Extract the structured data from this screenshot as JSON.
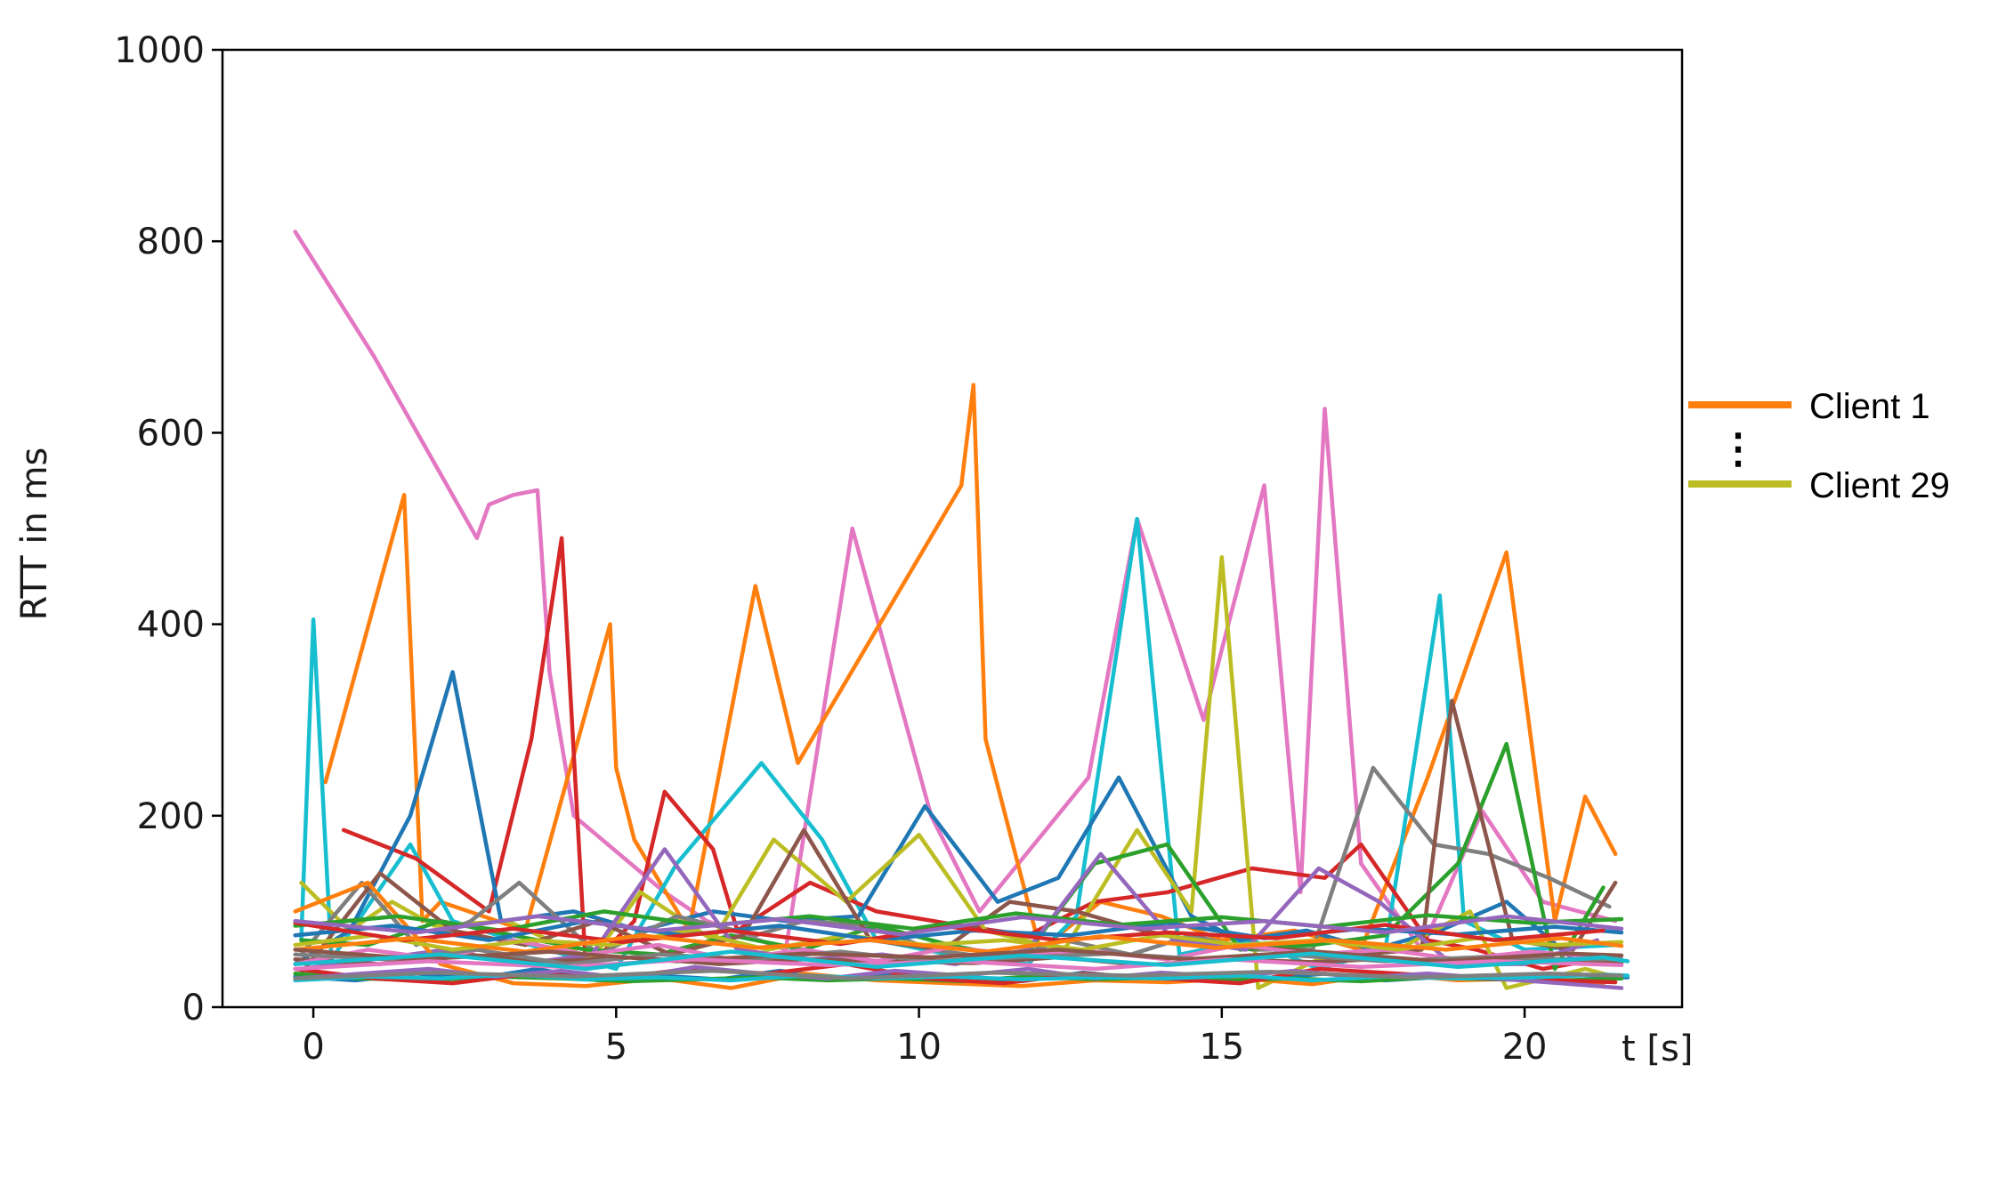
{
  "chart_data": {
    "type": "line",
    "xlabel": "t [s]",
    "ylabel": "RTT in ms",
    "xlim": [
      -1.5,
      22.6
    ],
    "ylim": [
      0,
      1000
    ],
    "xticks": [
      0,
      5,
      10,
      15,
      20
    ],
    "yticks": [
      0,
      200,
      400,
      600,
      800,
      1000
    ],
    "grid": false,
    "legend": {
      "placement": "right-outside",
      "entries": [
        {
          "label": "Client 1",
          "color": "#ff7f0e"
        },
        {
          "label": "Client 29",
          "color": "#bcbd22"
        }
      ],
      "ellipsis": "⋮"
    },
    "series": [
      {
        "color": "#e377c2",
        "x": [
          -0.3,
          1.0,
          2.7,
          2.9,
          3.3,
          3.7,
          3.9,
          4.3,
          5.8,
          6.5,
          7.8,
          8.9,
          10.2,
          11.0,
          12.8,
          13.6,
          14.7,
          15.7,
          16.3,
          16.7,
          17.3,
          18.3,
          19.3,
          20.3,
          21.5
        ],
        "y": [
          810,
          680,
          490,
          525,
          535,
          540,
          350,
          200,
          120,
          90,
          60,
          500,
          200,
          100,
          240,
          510,
          300,
          545,
          120,
          625,
          150,
          60,
          205,
          110,
          90
        ]
      },
      {
        "color": "#ff7f0e",
        "x": [
          0.2,
          1.5,
          1.8,
          2.1,
          3.5,
          4.9,
          5.0,
          5.3,
          6.2,
          7.3,
          8.0,
          10.7,
          10.9,
          11.1,
          12.0,
          13.0,
          14.0,
          15.0,
          16.2,
          17.3,
          18.4,
          19.7,
          20.5,
          21.0,
          21.5
        ],
        "y": [
          235,
          535,
          90,
          110,
          80,
          400,
          250,
          175,
          80,
          440,
          255,
          545,
          650,
          280,
          60,
          110,
          95,
          70,
          80,
          60,
          240,
          475,
          90,
          220,
          160
        ]
      },
      {
        "color": "#17becf",
        "x": [
          -0.2,
          0.0,
          0.3,
          1.6,
          2.3,
          3.3,
          5.0,
          6.0,
          7.4,
          8.4,
          9.3,
          10.5,
          11.8,
          12.6,
          13.6,
          14.3,
          15.5,
          16.6,
          17.7,
          18.6,
          19.0,
          20.0,
          21.5
        ],
        "y": [
          70,
          405,
          50,
          170,
          90,
          70,
          40,
          150,
          255,
          175,
          70,
          55,
          45,
          95,
          510,
          55,
          70,
          40,
          60,
          430,
          90,
          60,
          65
        ]
      },
      {
        "color": "#d62728",
        "x": [
          0.5,
          1.7,
          2.9,
          3.6,
          4.1,
          4.5,
          5.3,
          5.8,
          6.6,
          7.0,
          8.2,
          9.3,
          10.7,
          11.8,
          12.9,
          14.1,
          15.5,
          16.7,
          17.3,
          18.4,
          19.2,
          20.3,
          21.2
        ],
        "y": [
          185,
          155,
          100,
          280,
          490,
          40,
          90,
          225,
          165,
          80,
          130,
          100,
          85,
          75,
          110,
          120,
          145,
          135,
          170,
          70,
          60,
          40,
          50
        ]
      },
      {
        "color": "#1f77b4",
        "x": [
          -0.3,
          0.6,
          1.6,
          2.3,
          3.1,
          4.3,
          5.4,
          6.6,
          7.8,
          9.0,
          10.1,
          11.3,
          12.3,
          13.3,
          14.5,
          15.3,
          16.4,
          17.5,
          18.6,
          19.7,
          20.8
        ],
        "y": [
          45,
          80,
          200,
          350,
          90,
          100,
          80,
          100,
          90,
          95,
          210,
          110,
          135,
          240,
          95,
          70,
          80,
          60,
          80,
          110,
          50
        ]
      },
      {
        "color": "#bcbd22",
        "x": [
          -0.2,
          0.6,
          1.3,
          2.0,
          3.2,
          4.6,
          5.4,
          6.6,
          7.6,
          8.8,
          10.0,
          11.1,
          12.4,
          13.6,
          14.5,
          15.0,
          15.6,
          16.6,
          17.9,
          19.1,
          19.7,
          21.0,
          21.6
        ],
        "y": [
          130,
          80,
          110,
          85,
          90,
          50,
          120,
          70,
          175,
          110,
          180,
          80,
          60,
          185,
          100,
          470,
          20,
          50,
          60,
          100,
          20,
          40,
          30
        ]
      },
      {
        "color": "#7f7f7f",
        "x": [
          -0.2,
          0.8,
          1.7,
          2.6,
          3.4,
          4.7,
          6.0,
          7.3,
          8.1,
          9.2,
          10.2,
          11.4,
          12.4,
          13.5,
          14.5,
          15.5,
          16.5,
          17.5,
          18.5,
          19.4,
          20.4,
          21.4
        ],
        "y": [
          55,
          130,
          65,
          90,
          130,
          55,
          95,
          75,
          90,
          85,
          60,
          50,
          70,
          55,
          75,
          60,
          60,
          250,
          170,
          160,
          135,
          105
        ]
      },
      {
        "color": "#2ca02c",
        "x": [
          -0.2,
          0.9,
          2.1,
          3.3,
          4.5,
          5.7,
          6.9,
          8.1,
          9.3,
          10.5,
          11.7,
          12.9,
          14.1,
          15.3,
          16.5,
          17.7,
          18.9,
          19.7,
          20.5,
          21.3
        ],
        "y": [
          70,
          65,
          90,
          75,
          60,
          55,
          75,
          60,
          85,
          65,
          50,
          150,
          170,
          60,
          65,
          75,
          150,
          275,
          40,
          125
        ]
      },
      {
        "color": "#8c564b",
        "x": [
          -0.2,
          1.1,
          2.3,
          3.5,
          4.7,
          5.9,
          7.1,
          8.1,
          9.2,
          10.4,
          11.5,
          12.6,
          13.7,
          14.9,
          16.1,
          17.2,
          18.3,
          18.8,
          19.8,
          20.8,
          21.5
        ],
        "y": [
          35,
          140,
          80,
          65,
          90,
          55,
          75,
          185,
          70,
          60,
          110,
          100,
          80,
          65,
          60,
          55,
          60,
          320,
          70,
          60,
          130
        ]
      },
      {
        "color": "#9467bd",
        "x": [
          -0.2,
          1.0,
          2.2,
          3.4,
          4.6,
          5.8,
          7.0,
          8.2,
          9.4,
          10.6,
          11.8,
          13.0,
          14.2,
          15.4,
          16.6,
          17.6,
          18.8,
          20.0,
          21.2
        ],
        "y": [
          40,
          50,
          60,
          45,
          55,
          165,
          60,
          50,
          55,
          45,
          60,
          160,
          70,
          60,
          145,
          110,
          45,
          45,
          70
        ]
      },
      {
        "color": "#1f77b4",
        "x": [
          -0.3,
          0.7,
          1.7,
          2.7,
          3.7,
          4.7,
          5.7,
          6.7,
          7.7,
          8.7,
          9.7,
          10.7,
          11.7,
          12.7,
          13.7,
          14.7,
          15.7,
          16.7,
          17.7,
          18.7,
          19.7,
          20.7,
          21.7
        ],
        "y": [
          32,
          28,
          35,
          30,
          40,
          28,
          33,
          29,
          38,
          30,
          34,
          31,
          27,
          36,
          30,
          33,
          29,
          35,
          28,
          32,
          30,
          34,
          31
        ]
      },
      {
        "color": "#ff7f0e",
        "x": [
          -0.3,
          0.9,
          2.1,
          3.3,
          4.5,
          5.7,
          6.9,
          8.1,
          9.3,
          10.5,
          11.7,
          12.9,
          14.1,
          15.3,
          16.5,
          17.7,
          18.9,
          20.1,
          21.3
        ],
        "y": [
          100,
          130,
          45,
          25,
          22,
          30,
          20,
          35,
          28,
          25,
          22,
          28,
          26,
          30,
          24,
          35,
          28,
          30,
          25
        ]
      },
      {
        "color": "#2ca02c",
        "x": [
          -0.3,
          0.8,
          1.9,
          3.0,
          4.1,
          5.2,
          6.3,
          7.4,
          8.5,
          9.6,
          10.7,
          11.8,
          12.9,
          14.0,
          15.1,
          16.2,
          17.3,
          18.4,
          19.5,
          20.6,
          21.6
        ],
        "y": [
          35,
          30,
          28,
          32,
          30,
          27,
          29,
          31,
          28,
          30,
          27,
          32,
          29,
          31,
          28,
          30,
          27,
          31,
          29,
          28,
          30
        ]
      },
      {
        "color": "#d62728",
        "x": [
          -0.3,
          1.0,
          2.3,
          3.6,
          4.9,
          6.2,
          7.5,
          8.8,
          10.1,
          11.4,
          12.7,
          14.0,
          15.3,
          16.6,
          17.9,
          19.2,
          20.5,
          21.5
        ],
        "y": [
          40,
          30,
          25,
          35,
          30,
          40,
          35,
          45,
          30,
          25,
          35,
          30,
          25,
          40,
          35,
          30,
          28,
          26
        ]
      },
      {
        "color": "#9467bd",
        "x": [
          -0.3,
          0.8,
          1.9,
          3.0,
          4.1,
          5.2,
          6.3,
          7.4,
          8.5,
          9.6,
          10.7,
          11.8,
          12.9,
          14.0,
          15.1,
          16.2,
          17.3,
          18.4,
          19.5,
          20.6,
          21.6
        ],
        "y": [
          30,
          35,
          40,
          32,
          38,
          30,
          42,
          35,
          30,
          38,
          33,
          40,
          30,
          36,
          32,
          38,
          31,
          35,
          30,
          25,
          20
        ]
      },
      {
        "color": "#8c564b",
        "x": [
          -0.3,
          1.1,
          2.5,
          3.9,
          5.3,
          6.7,
          8.1,
          9.5,
          10.9,
          12.3,
          13.7,
          15.1,
          16.5,
          17.9,
          19.3,
          20.7,
          21.6
        ],
        "y": [
          50,
          45,
          55,
          48,
          52,
          45,
          50,
          48,
          46,
          52,
          44,
          50,
          47,
          51,
          45,
          48,
          46
        ]
      },
      {
        "color": "#e377c2",
        "x": [
          -0.3,
          0.9,
          2.1,
          3.3,
          4.5,
          5.7,
          6.9,
          8.1,
          9.3,
          10.5,
          11.7,
          12.9,
          14.1,
          15.3,
          16.5,
          17.7,
          18.9,
          20.1,
          21.3
        ],
        "y": [
          45,
          60,
          50,
          70,
          55,
          65,
          50,
          60,
          48,
          62,
          55,
          58,
          50,
          65,
          55,
          60,
          50,
          58,
          52
        ]
      },
      {
        "color": "#7f7f7f",
        "x": [
          -0.3,
          1.2,
          2.7,
          4.2,
          5.7,
          7.2,
          8.7,
          10.2,
          11.7,
          13.2,
          14.7,
          16.2,
          17.7,
          19.2,
          20.7,
          21.6
        ],
        "y": [
          55,
          50,
          60,
          45,
          55,
          50,
          58,
          48,
          52,
          56,
          50,
          54,
          48,
          52,
          50,
          50
        ]
      },
      {
        "color": "#bcbd22",
        "x": [
          -0.3,
          1.0,
          2.3,
          3.6,
          4.9,
          6.2,
          7.5,
          8.8,
          10.1,
          11.4,
          12.7,
          14.0,
          15.3,
          16.6,
          17.9,
          19.2,
          20.5,
          21.6
        ],
        "y": [
          65,
          75,
          60,
          70,
          65,
          80,
          60,
          75,
          65,
          70,
          60,
          75,
          65,
          70,
          60,
          72,
          65,
          68
        ]
      },
      {
        "color": "#17becf",
        "x": [
          -0.3,
          0.9,
          2.1,
          3.3,
          4.5,
          5.7,
          6.9,
          8.1,
          9.3,
          10.5,
          11.7,
          12.9,
          14.1,
          15.3,
          16.5,
          17.7,
          18.9,
          20.1,
          21.3,
          21.7
        ],
        "y": [
          28,
          32,
          30,
          34,
          29,
          31,
          28,
          33,
          30,
          32,
          29,
          31,
          30,
          33,
          28,
          32,
          30,
          31,
          34,
          33
        ]
      },
      {
        "color": "#1f77b4",
        "x": [
          -0.3,
          1.3,
          2.9,
          4.5,
          6.1,
          7.7,
          9.3,
          10.9,
          12.5,
          14.1,
          15.7,
          17.3,
          18.9,
          20.5,
          21.6
        ],
        "y": [
          75,
          85,
          70,
          90,
          75,
          85,
          70,
          80,
          75,
          88,
          72,
          82,
          76,
          84,
          78
        ]
      },
      {
        "color": "#2ca02c",
        "x": [
          -0.3,
          1.4,
          3.1,
          4.8,
          6.5,
          8.2,
          9.9,
          11.6,
          13.3,
          15.0,
          16.7,
          18.4,
          20.1,
          21.6
        ],
        "y": [
          85,
          95,
          80,
          100,
          85,
          95,
          82,
          98,
          86,
          94,
          84,
          96,
          88,
          92
        ]
      },
      {
        "color": "#d62728",
        "x": [
          -0.3,
          1.5,
          3.3,
          5.1,
          6.9,
          8.7,
          10.5,
          12.3,
          14.1,
          15.9,
          17.7,
          19.5,
          21.3
        ],
        "y": [
          88,
          70,
          82,
          68,
          80,
          66,
          84,
          70,
          78,
          72,
          86,
          70,
          80
        ]
      },
      {
        "color": "#ff7f0e",
        "x": [
          -0.3,
          1.6,
          3.5,
          5.4,
          7.3,
          9.2,
          11.1,
          13.0,
          14.9,
          16.8,
          18.7,
          20.6,
          21.6
        ],
        "y": [
          60,
          72,
          58,
          75,
          62,
          70,
          58,
          74,
          62,
          70,
          60,
          72,
          64
        ]
      },
      {
        "color": "#9467bd",
        "x": [
          -0.3,
          1.7,
          3.7,
          5.7,
          7.7,
          9.7,
          11.7,
          13.7,
          15.7,
          17.7,
          19.7,
          21.6
        ],
        "y": [
          90,
          78,
          95,
          80,
          92,
          76,
          94,
          82,
          90,
          78,
          95,
          82
        ]
      },
      {
        "color": "#8c564b",
        "x": [
          -0.3,
          1.8,
          3.9,
          6.0,
          8.1,
          10.2,
          12.3,
          14.4,
          16.5,
          18.6,
          20.7,
          21.6
        ],
        "y": [
          60,
          50,
          58,
          48,
          56,
          52,
          60,
          50,
          58,
          48,
          56,
          54
        ]
      },
      {
        "color": "#e377c2",
        "x": [
          -0.3,
          1.9,
          4.1,
          6.3,
          8.5,
          10.7,
          12.9,
          15.1,
          17.3,
          19.5,
          21.6
        ],
        "y": [
          40,
          48,
          42,
          50,
          44,
          48,
          40,
          50,
          42,
          48,
          44
        ]
      },
      {
        "color": "#7f7f7f",
        "x": [
          -0.3,
          2.0,
          4.3,
          6.6,
          8.9,
          11.2,
          13.5,
          15.8,
          18.1,
          20.4,
          21.6
        ],
        "y": [
          30,
          36,
          32,
          38,
          30,
          36,
          33,
          37,
          31,
          35,
          33
        ]
      },
      {
        "color": "#17becf",
        "x": [
          -0.3,
          2.1,
          4.5,
          6.9,
          9.3,
          11.7,
          14.1,
          16.5,
          18.9,
          21.3,
          21.7
        ],
        "y": [
          45,
          55,
          40,
          58,
          42,
          54,
          44,
          56,
          42,
          52,
          48
        ]
      }
    ]
  }
}
